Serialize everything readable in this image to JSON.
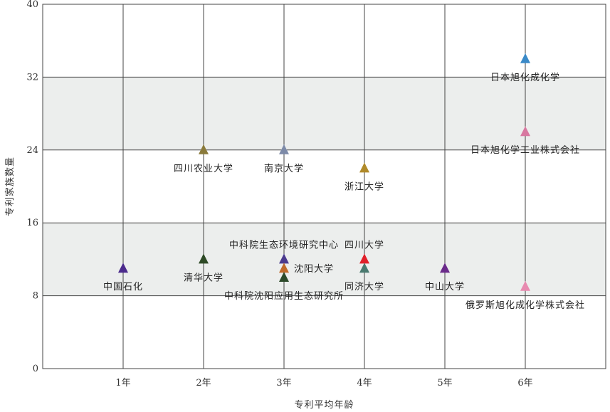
{
  "chart_data": {
    "type": "scatter",
    "xlabel": "专利平均年龄",
    "ylabel": "专利家族数量",
    "xlim": [
      0,
      7
    ],
    "ylim": [
      0,
      40
    ],
    "x_ticks": [
      1,
      2,
      3,
      4,
      5,
      6
    ],
    "x_tick_labels": [
      "1年",
      "2年",
      "3年",
      "4年",
      "5年",
      "6年"
    ],
    "y_ticks": [
      0,
      8,
      16,
      24,
      32,
      40
    ],
    "y_tick_labels": [
      "0",
      "8",
      "16",
      "24",
      "32",
      "40"
    ],
    "shaded_bands": [
      [
        8,
        16
      ],
      [
        24,
        32
      ]
    ],
    "band_color": "#eceeed",
    "grid": true,
    "marker": "triangle",
    "points": [
      {
        "label": "中国石化",
        "x": 1,
        "y": 11,
        "color": "#4b2a8c",
        "label_pos": "below"
      },
      {
        "label": "四川农业大学",
        "x": 2,
        "y": 24,
        "color": "#8a7a3a",
        "label_pos": "below"
      },
      {
        "label": "清华大学",
        "x": 2,
        "y": 12,
        "color": "#2e4a26",
        "label_pos": "below"
      },
      {
        "label": "南京大学",
        "x": 3,
        "y": 24,
        "color": "#7d8aa8",
        "label_pos": "below"
      },
      {
        "label": "中科院生态环境研究中心",
        "x": 3,
        "y": 12,
        "color": "#4a3a8e",
        "label_pos": "above"
      },
      {
        "label": "沈阳大学",
        "x": 3,
        "y": 11,
        "color": "#c06a2a",
        "label_pos": "right"
      },
      {
        "label": "中科院沈阳应用生态研究所",
        "x": 3,
        "y": 10,
        "color": "#2c4a2a",
        "label_pos": "below"
      },
      {
        "label": "浙江大学",
        "x": 4,
        "y": 22,
        "color": "#b08a2a",
        "label_pos": "below"
      },
      {
        "label": "四川大学",
        "x": 4,
        "y": 12,
        "color": "#e0202a",
        "label_pos": "above"
      },
      {
        "label": "同济大学",
        "x": 4,
        "y": 11,
        "color": "#4a7a70",
        "label_pos": "below"
      },
      {
        "label": "中山大学",
        "x": 5,
        "y": 11,
        "color": "#6a2a8a",
        "label_pos": "below"
      },
      {
        "label": "日本旭化成化学",
        "x": 6,
        "y": 34,
        "color": "#3a8ac8",
        "label_pos": "below"
      },
      {
        "label": "日本旭化学工业株式会社",
        "x": 6,
        "y": 26,
        "color": "#d878a0",
        "label_pos": "below"
      },
      {
        "label": "俄罗斯旭化成化学株式会社",
        "x": 6,
        "y": 9,
        "color": "#e88ab0",
        "label_pos": "below"
      }
    ]
  }
}
